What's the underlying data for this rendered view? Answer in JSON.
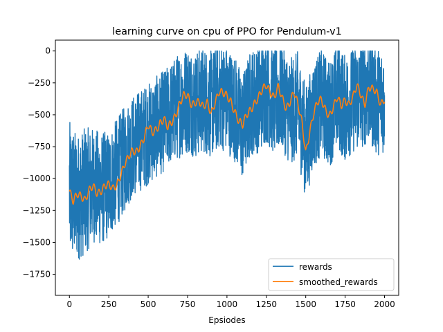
{
  "chart_data": {
    "type": "line",
    "title": "learning curve on cpu of PPO for Pendulum-v1",
    "xlabel": "Epsiodes",
    "ylabel": "",
    "xlim": [
      -89,
      2090
    ],
    "ylim": [
      -1915,
      85
    ],
    "x_ticks": [
      0,
      250,
      500,
      750,
      1000,
      1250,
      1500,
      1750,
      2000
    ],
    "y_ticks": [
      0,
      -250,
      -500,
      -750,
      -1000,
      -1250,
      -1500,
      -1750
    ],
    "x_tick_labels": [
      "0",
      "250",
      "500",
      "750",
      "1000",
      "1250",
      "1500",
      "1750",
      "2000"
    ],
    "y_tick_labels": [
      "0",
      "−250",
      "−500",
      "−750",
      "−1000",
      "−1250",
      "−1500",
      "−1750"
    ],
    "grid": false,
    "legend_position": "lower-right",
    "series": [
      {
        "name": "rewards",
        "color": "#1f77b4",
        "style": "noisy",
        "x": [
          0,
          50,
          100,
          150,
          200,
          250,
          300,
          350,
          400,
          450,
          500,
          550,
          600,
          650,
          700,
          750,
          800,
          850,
          900,
          950,
          1000,
          1050,
          1100,
          1150,
          1200,
          1250,
          1300,
          1350,
          1400,
          1450,
          1500,
          1550,
          1600,
          1650,
          1700,
          1750,
          1800,
          1850,
          1900,
          1950,
          2000
        ],
        "values": [
          -1100,
          -1150,
          -1100,
          -1050,
          -1080,
          -1050,
          -950,
          -850,
          -750,
          -700,
          -650,
          -600,
          -550,
          -480,
          -420,
          -380,
          -420,
          -380,
          -420,
          -350,
          -380,
          -450,
          -600,
          -400,
          -380,
          -300,
          -400,
          -350,
          -480,
          -420,
          -720,
          -500,
          -400,
          -500,
          -350,
          -450,
          -380,
          -350,
          -300,
          -400,
          -380
        ],
        "spread": [
          550,
          500,
          500,
          450,
          450,
          420,
          420,
          420,
          400,
          400,
          400,
          400,
          400,
          400,
          420,
          420,
          420,
          420,
          420,
          420,
          420,
          420,
          420,
          420,
          420,
          420,
          420,
          420,
          420,
          420,
          450,
          420,
          420,
          420,
          420,
          420,
          420,
          420,
          420,
          420,
          420
        ],
        "points": 2001
      },
      {
        "name": "smoothed_rewards",
        "color": "#ff7f0e",
        "style": "smooth",
        "x": [
          0,
          25,
          50,
          75,
          100,
          125,
          150,
          175,
          200,
          225,
          250,
          275,
          300,
          325,
          350,
          375,
          400,
          425,
          450,
          475,
          500,
          525,
          550,
          575,
          600,
          625,
          650,
          675,
          700,
          725,
          750,
          775,
          800,
          825,
          850,
          875,
          900,
          925,
          950,
          975,
          1000,
          1025,
          1050,
          1075,
          1100,
          1125,
          1150,
          1175,
          1200,
          1225,
          1250,
          1275,
          1300,
          1325,
          1350,
          1375,
          1400,
          1425,
          1450,
          1475,
          1500,
          1525,
          1550,
          1575,
          1600,
          1625,
          1650,
          1675,
          1700,
          1725,
          1750,
          1775,
          1800,
          1825,
          1850,
          1875,
          1900,
          1925,
          1950,
          1975,
          2000
        ],
        "values": [
          -1100,
          -1200,
          -1130,
          -1120,
          -1150,
          -1100,
          -1080,
          -1120,
          -1080,
          -1040,
          -1060,
          -1100,
          -1050,
          -950,
          -880,
          -850,
          -800,
          -780,
          -720,
          -680,
          -600,
          -650,
          -600,
          -550,
          -540,
          -620,
          -560,
          -480,
          -400,
          -360,
          -370,
          -420,
          -380,
          -390,
          -460,
          -420,
          -480,
          -380,
          -320,
          -350,
          -360,
          -380,
          -460,
          -560,
          -600,
          -500,
          -440,
          -400,
          -380,
          -320,
          -260,
          -300,
          -360,
          -300,
          -380,
          -440,
          -380,
          -320,
          -440,
          -560,
          -780,
          -620,
          -500,
          -420,
          -380,
          -440,
          -500,
          -460,
          -380,
          -420,
          -360,
          -420,
          -380,
          -280,
          -330,
          -400,
          -290,
          -320,
          -330,
          -400,
          -360
        ]
      }
    ]
  }
}
